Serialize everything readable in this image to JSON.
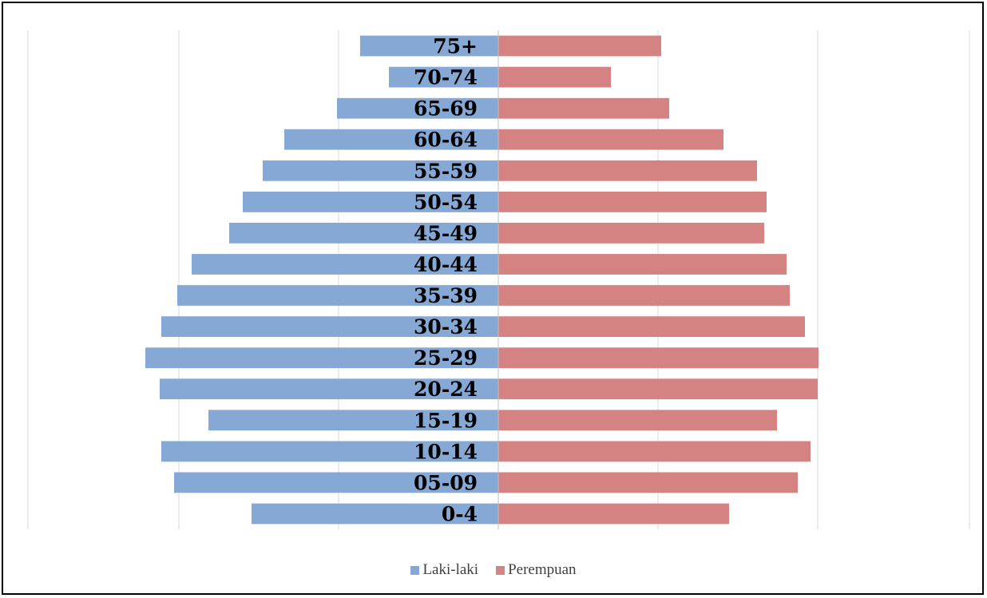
{
  "chart_data": {
    "type": "bar",
    "orientation": "horizontal",
    "variant": "population-pyramid",
    "categories": [
      "75+",
      "70-74",
      "65-69",
      "60-64",
      "55-59",
      "50-54",
      "45-49",
      "40-44",
      "35-39",
      "30-34",
      "25-29",
      "20-24",
      "15-19",
      "10-14",
      "05-09",
      "0-4"
    ],
    "series": [
      {
        "name": "Laki-laki",
        "color": "#86A8D4",
        "side": "left",
        "values": [
          173,
          137,
          202,
          268,
          295,
          320,
          337,
          384,
          402,
          422,
          442,
          424,
          363,
          422,
          406,
          309
        ]
      },
      {
        "name": "Perempuan",
        "color": "#D58282",
        "side": "right",
        "values": [
          204,
          141,
          214,
          282,
          324,
          336,
          333,
          361,
          365,
          384,
          401,
          400,
          349,
          391,
          375,
          289
        ]
      }
    ],
    "xlim": [
      -590,
      590
    ],
    "grid": true,
    "legend_position": "bottom"
  }
}
